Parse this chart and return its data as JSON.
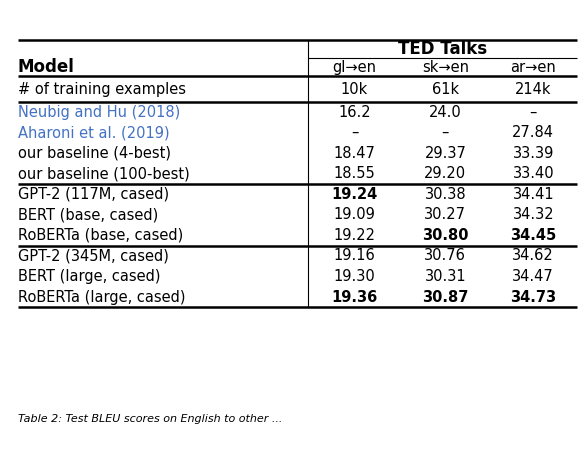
{
  "title": "TED Talks",
  "col_headers": [
    "Model",
    "gl→en",
    "sk→en",
    "ar→en"
  ],
  "subheader_label": "# of training examples",
  "subheader_values": [
    "10k",
    "61k",
    "214k"
  ],
  "rows": [
    {
      "model": "Neubig and Hu (2018)",
      "vals": [
        "16.2",
        "24.0",
        "–"
      ],
      "color": "#4472c4",
      "bold_cols": []
    },
    {
      "model": "Aharoni et al. (2019)",
      "vals": [
        "–",
        "–",
        "27.84"
      ],
      "color": "#4472c4",
      "bold_cols": []
    },
    {
      "model": "our baseline (4-best)",
      "vals": [
        "18.47",
        "29.37",
        "33.39"
      ],
      "color": "black",
      "bold_cols": []
    },
    {
      "model": "our baseline (100-best)",
      "vals": [
        "18.55",
        "29.20",
        "33.40"
      ],
      "color": "black",
      "bold_cols": []
    },
    {
      "model": "GPT-2 (117M, cased)",
      "vals": [
        "19.24",
        "30.38",
        "34.41"
      ],
      "color": "black",
      "bold_cols": [
        0
      ]
    },
    {
      "model": "BERT (base, cased)",
      "vals": [
        "19.09",
        "30.27",
        "34.32"
      ],
      "color": "black",
      "bold_cols": []
    },
    {
      "model": "RoBERTa (base, cased)",
      "vals": [
        "19.22",
        "30.80",
        "34.45"
      ],
      "color": "black",
      "bold_cols": [
        1,
        2
      ]
    },
    {
      "model": "GPT-2 (345M, cased)",
      "vals": [
        "19.16",
        "30.76",
        "34.62"
      ],
      "color": "black",
      "bold_cols": []
    },
    {
      "model": "BERT (large, cased)",
      "vals": [
        "19.30",
        "30.31",
        "34.47"
      ],
      "color": "black",
      "bold_cols": []
    },
    {
      "model": "RoBERTa (large, cased)",
      "vals": [
        "19.36",
        "30.87",
        "34.73"
      ],
      "color": "black",
      "bold_cols": [
        0,
        1,
        2
      ]
    }
  ],
  "caption": "Table 2: Test BLEU scores on English to other ...",
  "bg_color": "white",
  "font_size": 10.5,
  "header_font_size": 12
}
